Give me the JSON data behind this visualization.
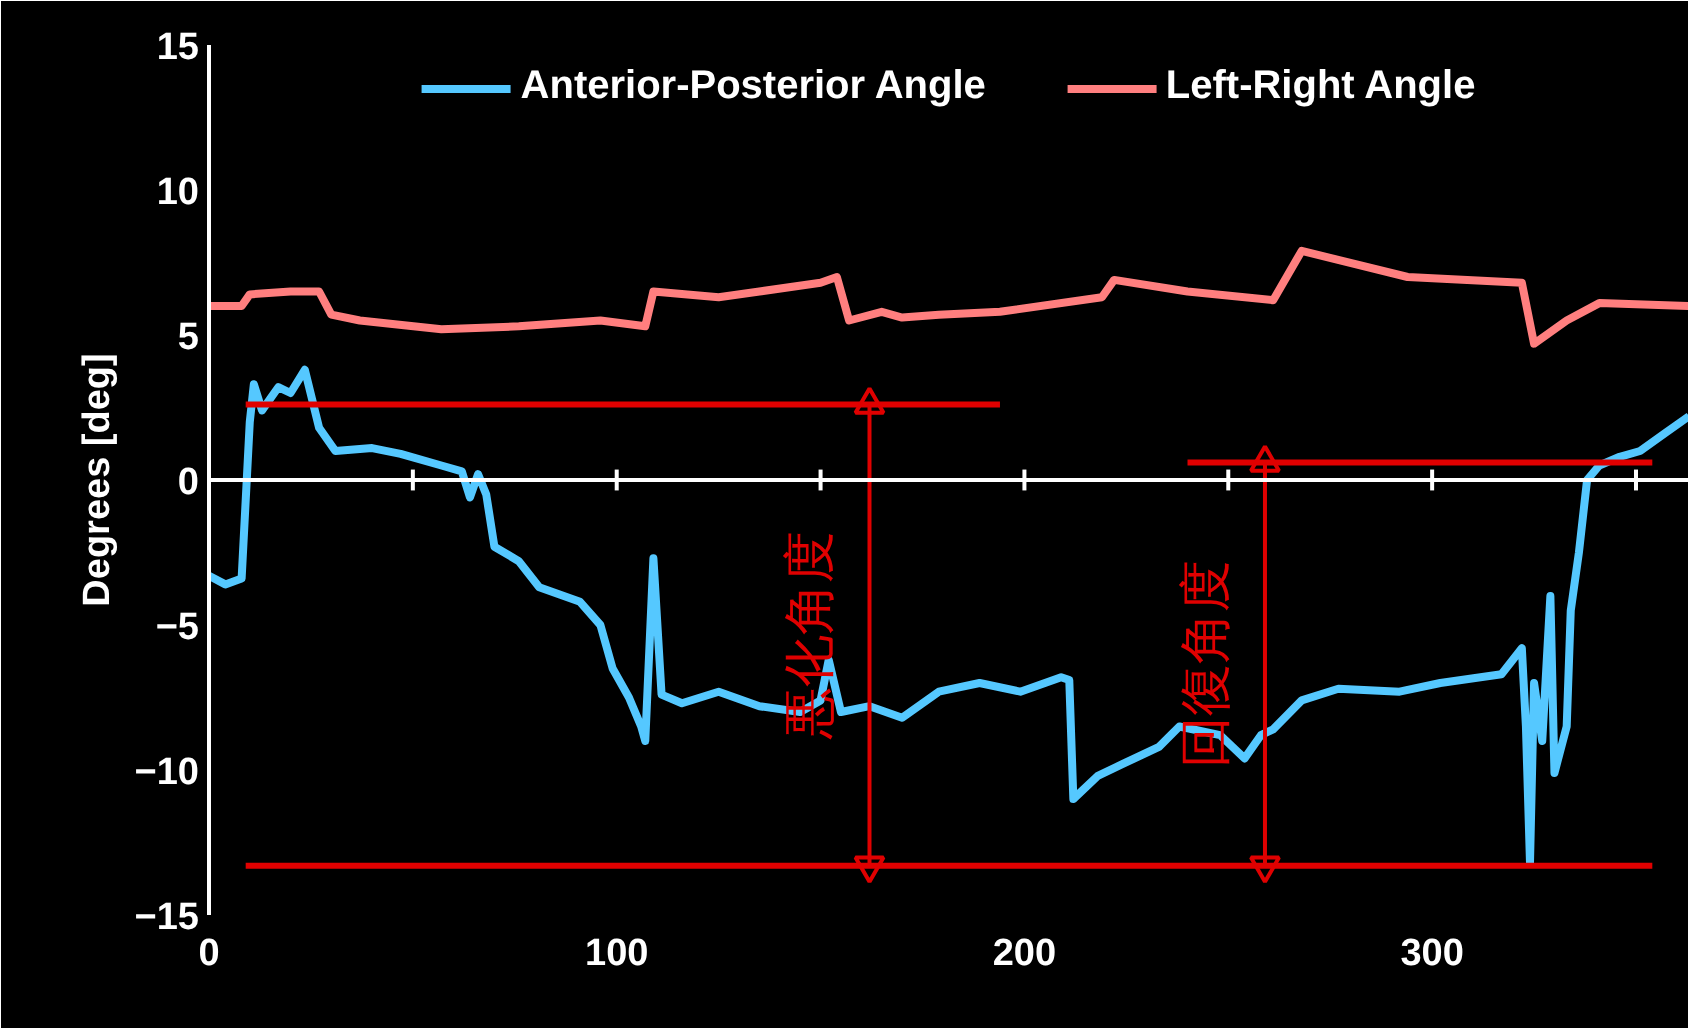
{
  "chart_data": {
    "type": "line",
    "ylabel": "Degrees [deg]",
    "xlim": [
      0,
      363
    ],
    "ylim": [
      -15,
      15
    ],
    "xticks": [
      0,
      {
        "value": 50,
        "label": null
      },
      100,
      {
        "value": 150,
        "label": null
      },
      200,
      {
        "value": 250,
        "label": null
      },
      300,
      {
        "value": 350,
        "label": null
      }
    ],
    "yticks": [
      -15,
      -10,
      -5,
      0,
      5,
      10,
      15
    ],
    "legend": "top",
    "grid": false,
    "ref_lines": [
      {
        "axis": "y",
        "value": 0,
        "color": "#ffffff"
      }
    ],
    "annotations": [
      "悪化角度",
      "回復角度"
    ],
    "series": [
      {
        "name": "Anterior-Posterior Angle",
        "color": "#55c8ff",
        "x": [
          0,
          4,
          8,
          10,
          11,
          13,
          17,
          20,
          23.5,
          27,
          31,
          40,
          47,
          57,
          62,
          64,
          66,
          68,
          70,
          76,
          81,
          91,
          96,
          99,
          103,
          106,
          107,
          109,
          111,
          116,
          125,
          135,
          145,
          150,
          152,
          155,
          162,
          170,
          179,
          189,
          199,
          209,
          211,
          212,
          218,
          224,
          233,
          238,
          248,
          254,
          258,
          261,
          268,
          277,
          292,
          302,
          317,
          322,
          323,
          324,
          325,
          327,
          329,
          330,
          333,
          334,
          336,
          338,
          341,
          346,
          351,
          357,
          363
        ],
        "values": [
          -3.3,
          -3.6,
          -3.4,
          2.0,
          3.3,
          2.4,
          3.2,
          3.0,
          3.8,
          1.8,
          1.0,
          1.1,
          0.9,
          0.5,
          0.3,
          -0.6,
          0.2,
          -0.5,
          -2.3,
          -2.8,
          -3.7,
          -4.2,
          -5.0,
          -6.5,
          -7.5,
          -8.5,
          -9.0,
          -2.7,
          -7.4,
          -7.7,
          -7.3,
          -7.8,
          -8.0,
          -7.6,
          -6.2,
          -8.0,
          -7.8,
          -8.2,
          -7.3,
          -7.0,
          -7.3,
          -6.8,
          -6.9,
          -11.0,
          -10.2,
          -9.8,
          -9.2,
          -8.5,
          -8.8,
          -9.6,
          -8.8,
          -8.6,
          -7.6,
          -7.2,
          -7.3,
          -7.0,
          -6.7,
          -5.8,
          -8.5,
          -13.2,
          -7.0,
          -9.0,
          -4.0,
          -10.1,
          -8.5,
          -4.5,
          -2.5,
          0.0,
          0.5,
          0.8,
          1.0,
          1.6,
          2.2
        ]
      },
      {
        "name": "Left-Right Angle",
        "color": "#ff7f7f",
        "x": [
          0,
          8,
          10,
          20,
          27,
          30,
          37,
          57,
          76,
          96,
          107,
          109,
          125,
          135,
          150,
          154,
          157,
          165,
          170,
          179,
          194,
          219,
          222,
          240,
          261,
          268,
          294,
          322,
          325,
          333,
          341,
          363
        ],
        "values": [
          6.0,
          6.0,
          6.4,
          6.5,
          6.5,
          5.7,
          5.5,
          5.2,
          5.3,
          5.5,
          5.3,
          6.5,
          6.3,
          6.5,
          6.8,
          7.0,
          5.5,
          5.8,
          5.6,
          5.7,
          5.8,
          6.3,
          6.9,
          6.5,
          6.2,
          7.9,
          7.0,
          6.8,
          4.7,
          5.5,
          6.1,
          6.0
        ]
      },
      {
        "color": "#e00000",
        "x": [
          9,
          194
        ],
        "values": [
          2.6,
          2.6
        ]
      },
      {
        "color": "#e00000",
        "x": [
          240,
          354
        ],
        "values": [
          0.6,
          0.6
        ]
      },
      {
        "color": "#e00000",
        "x": [
          9,
          354
        ],
        "values": [
          -13.3,
          -13.3
        ]
      },
      {
        "color": "#e00000",
        "marker": "triangle",
        "x": [
          162,
          162
        ],
        "values": [
          2.6,
          -13.3
        ]
      },
      {
        "color": "#e00000",
        "marker": "triangle",
        "x": [
          259,
          259
        ],
        "values": [
          0.6,
          -13.3
        ]
      }
    ]
  }
}
